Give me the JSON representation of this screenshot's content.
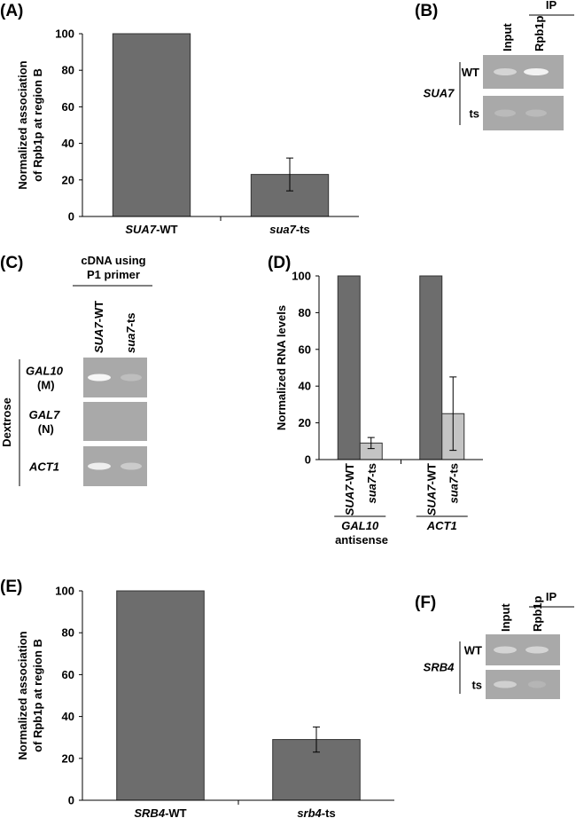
{
  "chart_data": [
    {
      "type": "bar",
      "panel": "(A)",
      "ylabel": [
        "Normalized association",
        "of Rpb1p at region B"
      ],
      "categories": [
        "SUA7-WT",
        "sua7-ts"
      ],
      "values": [
        100,
        23
      ],
      "errors": [
        null,
        9
      ],
      "color": "#6d6d6d",
      "ylim": [
        0,
        100
      ],
      "yticks": [
        0,
        20,
        40,
        60,
        80,
        100
      ]
    },
    {
      "type": "grouped_bar",
      "panel": "(D)",
      "ylabel": [
        "Normalized RNA levels"
      ],
      "categories": [
        "GAL10 antisense",
        "ACT1"
      ],
      "series": [
        {
          "name": "SUA7-WT",
          "color": "#6d6d6d",
          "values": [
            100,
            100
          ],
          "errors": [
            null,
            null
          ]
        },
        {
          "name": "sua7-ts",
          "color": "#c4c4c4",
          "values": [
            9,
            25
          ],
          "errors": [
            3,
            20
          ]
        }
      ],
      "ylim": [
        0,
        100
      ],
      "yticks": [
        0,
        20,
        40,
        60,
        80,
        100
      ]
    },
    {
      "type": "bar",
      "panel": "(E)",
      "ylabel": [
        "Normalized association",
        "of Rpb1p at region B"
      ],
      "categories": [
        "SRB4-WT",
        "srb4-ts"
      ],
      "values": [
        100,
        29
      ],
      "errors": [
        null,
        6
      ],
      "color": "#6d6d6d",
      "ylim": [
        0,
        100
      ],
      "yticks": [
        0,
        20,
        40,
        60,
        80,
        100
      ]
    }
  ],
  "gels": [
    {
      "panel": "(B)",
      "ip": "IP",
      "lanes": [
        "Input",
        "Rpb1p"
      ],
      "gene": "SUA7",
      "rows": [
        "WT",
        "ts"
      ]
    },
    {
      "panel": "(C)",
      "header": [
        "cDNA using",
        "P1 primer"
      ],
      "lanes": [
        "SUA7-WT",
        "sua7-ts"
      ],
      "condition": "Dextrose",
      "rows": [
        "GAL10 (M)",
        "GAL7 (N)",
        "ACT1"
      ]
    },
    {
      "panel": "(F)",
      "ip": "IP",
      "lanes": [
        "Input",
        "Rpb1p"
      ],
      "gene": "SRB4",
      "rows": [
        "WT",
        "ts"
      ]
    }
  ]
}
